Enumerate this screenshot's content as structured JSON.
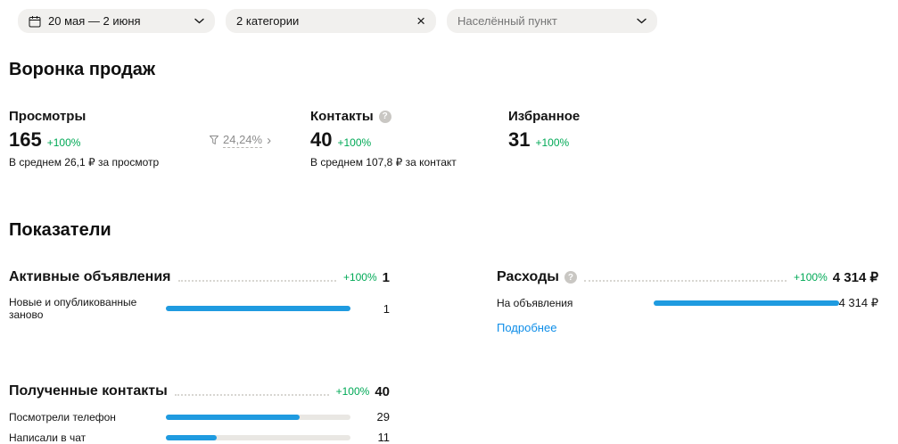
{
  "filters": {
    "date_range": "20 мая — 2 июня",
    "categories": "2 категории",
    "location_placeholder": "Населённый пункт"
  },
  "funnel": {
    "title": "Воронка продаж",
    "views": {
      "label": "Просмотры",
      "value": "165",
      "delta": "+100%",
      "sub": "В среднем 26,1 ₽ за просмотр"
    },
    "conversion": {
      "value": "24,24%"
    },
    "contacts": {
      "label": "Контакты",
      "value": "40",
      "delta": "+100%",
      "sub": "В среднем 107,8 ₽ за контакт"
    },
    "favorites": {
      "label": "Избранное",
      "value": "31",
      "delta": "+100%"
    }
  },
  "indicators": {
    "title": "Показатели",
    "active_listings": {
      "title": "Активные объявления",
      "delta": "+100%",
      "total": "1",
      "rows": [
        {
          "label": "Новые и опубликованные заново",
          "value": "1",
          "pct": 100
        }
      ]
    },
    "expenses": {
      "title": "Расходы",
      "delta": "+100%",
      "total": "4 314 ₽",
      "rows": [
        {
          "label": "На объявления",
          "value": "4 314 ₽",
          "pct": 100
        }
      ],
      "link": "Подробнее"
    },
    "received_contacts": {
      "title": "Полученные контакты",
      "delta": "+100%",
      "total": "40",
      "rows": [
        {
          "label": "Посмотрели телефон",
          "value": "29",
          "pct": 72.5
        },
        {
          "label": "Написали в чат",
          "value": "11",
          "pct": 27.5
        }
      ]
    }
  },
  "colors": {
    "accent_blue": "#1f9be0",
    "positive_green": "#00a956",
    "link_blue": "#0d8de8"
  }
}
